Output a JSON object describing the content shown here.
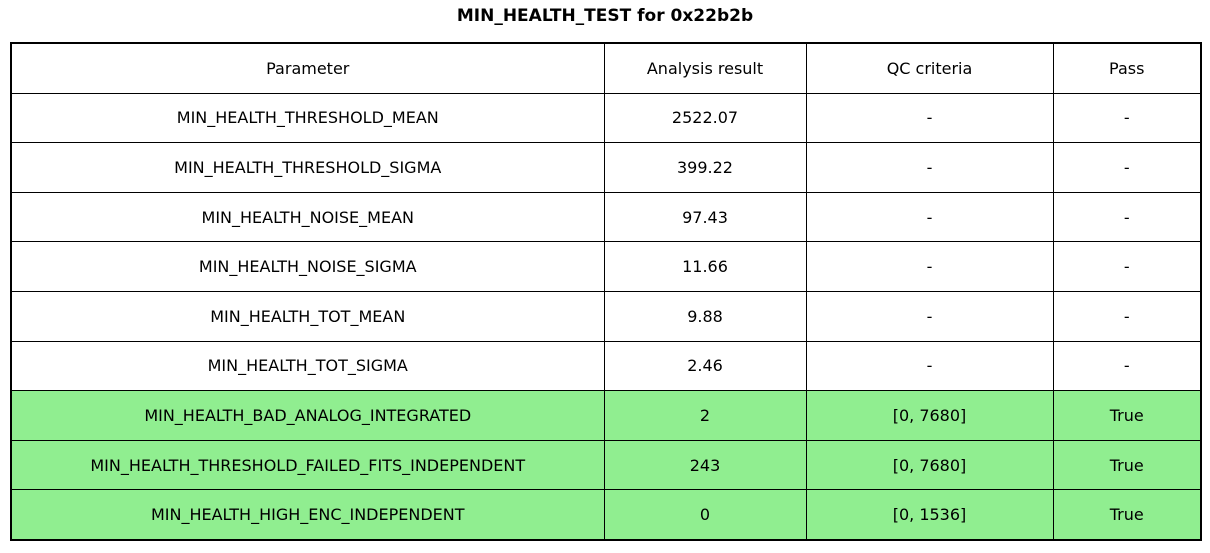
{
  "title": "MIN_HEALTH_TEST for 0x22b2b",
  "table": {
    "columns": [
      "Parameter",
      "Analysis result",
      "QC criteria",
      "Pass"
    ],
    "rows": [
      {
        "parameter": "MIN_HEALTH_THRESHOLD_MEAN",
        "result": "2522.07",
        "qc": "-",
        "pass": "-",
        "highlight": false
      },
      {
        "parameter": "MIN_HEALTH_THRESHOLD_SIGMA",
        "result": "399.22",
        "qc": "-",
        "pass": "-",
        "highlight": false
      },
      {
        "parameter": "MIN_HEALTH_NOISE_MEAN",
        "result": "97.43",
        "qc": "-",
        "pass": "-",
        "highlight": false
      },
      {
        "parameter": "MIN_HEALTH_NOISE_SIGMA",
        "result": "11.66",
        "qc": "-",
        "pass": "-",
        "highlight": false
      },
      {
        "parameter": "MIN_HEALTH_TOT_MEAN",
        "result": "9.88",
        "qc": "-",
        "pass": "-",
        "highlight": false
      },
      {
        "parameter": "MIN_HEALTH_TOT_SIGMA",
        "result": "2.46",
        "qc": "-",
        "pass": "-",
        "highlight": false
      },
      {
        "parameter": "MIN_HEALTH_BAD_ANALOG_INTEGRATED",
        "result": "2",
        "qc": "[0, 7680]",
        "pass": "True",
        "highlight": true
      },
      {
        "parameter": "MIN_HEALTH_THRESHOLD_FAILED_FITS_INDEPENDENT",
        "result": "243",
        "qc": "[0, 7680]",
        "pass": "True",
        "highlight": true
      },
      {
        "parameter": "MIN_HEALTH_HIGH_ENC_INDEPENDENT",
        "result": "0",
        "qc": "[0, 1536]",
        "pass": "True",
        "highlight": true
      }
    ]
  },
  "colors": {
    "pass_green": "#90EE90",
    "border": "#000000",
    "background": "#FFFFFF"
  }
}
